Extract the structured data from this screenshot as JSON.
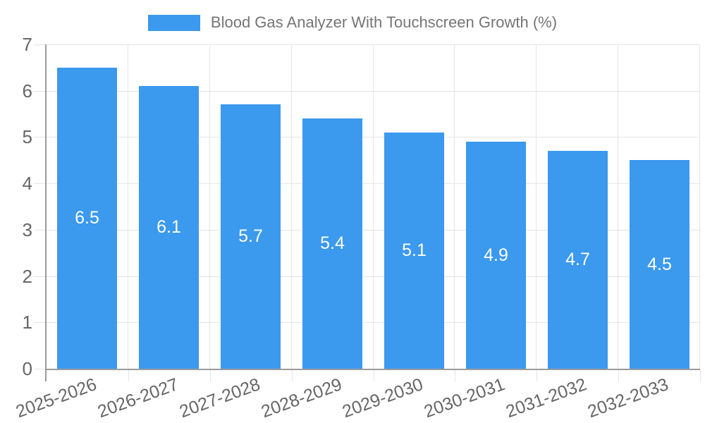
{
  "chart_data": {
    "type": "bar",
    "title": "Blood Gas Analyzer With Touchscreen Growth (%)",
    "legend": {
      "label": "Blood Gas Analyzer With Touchscreen Growth (%)",
      "position": "top"
    },
    "categories": [
      "2025-2026",
      "2026-2027",
      "2027-2028",
      "2028-2029",
      "2029-2030",
      "2030-2031",
      "2031-2032",
      "2032-2033"
    ],
    "series": [
      {
        "name": "Blood Gas Analyzer With Touchscreen Growth (%)",
        "values": [
          6.5,
          6.1,
          5.7,
          5.4,
          5.1,
          4.9,
          4.7,
          4.5
        ]
      }
    ],
    "value_labels": [
      "6.5",
      "6.1",
      "5.7",
      "5.4",
      "5.1",
      "4.9",
      "4.7",
      "4.5"
    ],
    "xlabel": "",
    "ylabel": "",
    "ylim": [
      0,
      7
    ],
    "y_ticks": [
      0,
      1,
      2,
      3,
      4,
      5,
      6,
      7
    ],
    "grid": true,
    "colors": {
      "bar": "#3b99ee",
      "value_label": "#ffffff",
      "axis_text": "#666666",
      "legend_text": "#757575",
      "grid_line": "#e5e5e5",
      "axis_line": "#9b9b9b",
      "background": "#ffffff"
    }
  }
}
